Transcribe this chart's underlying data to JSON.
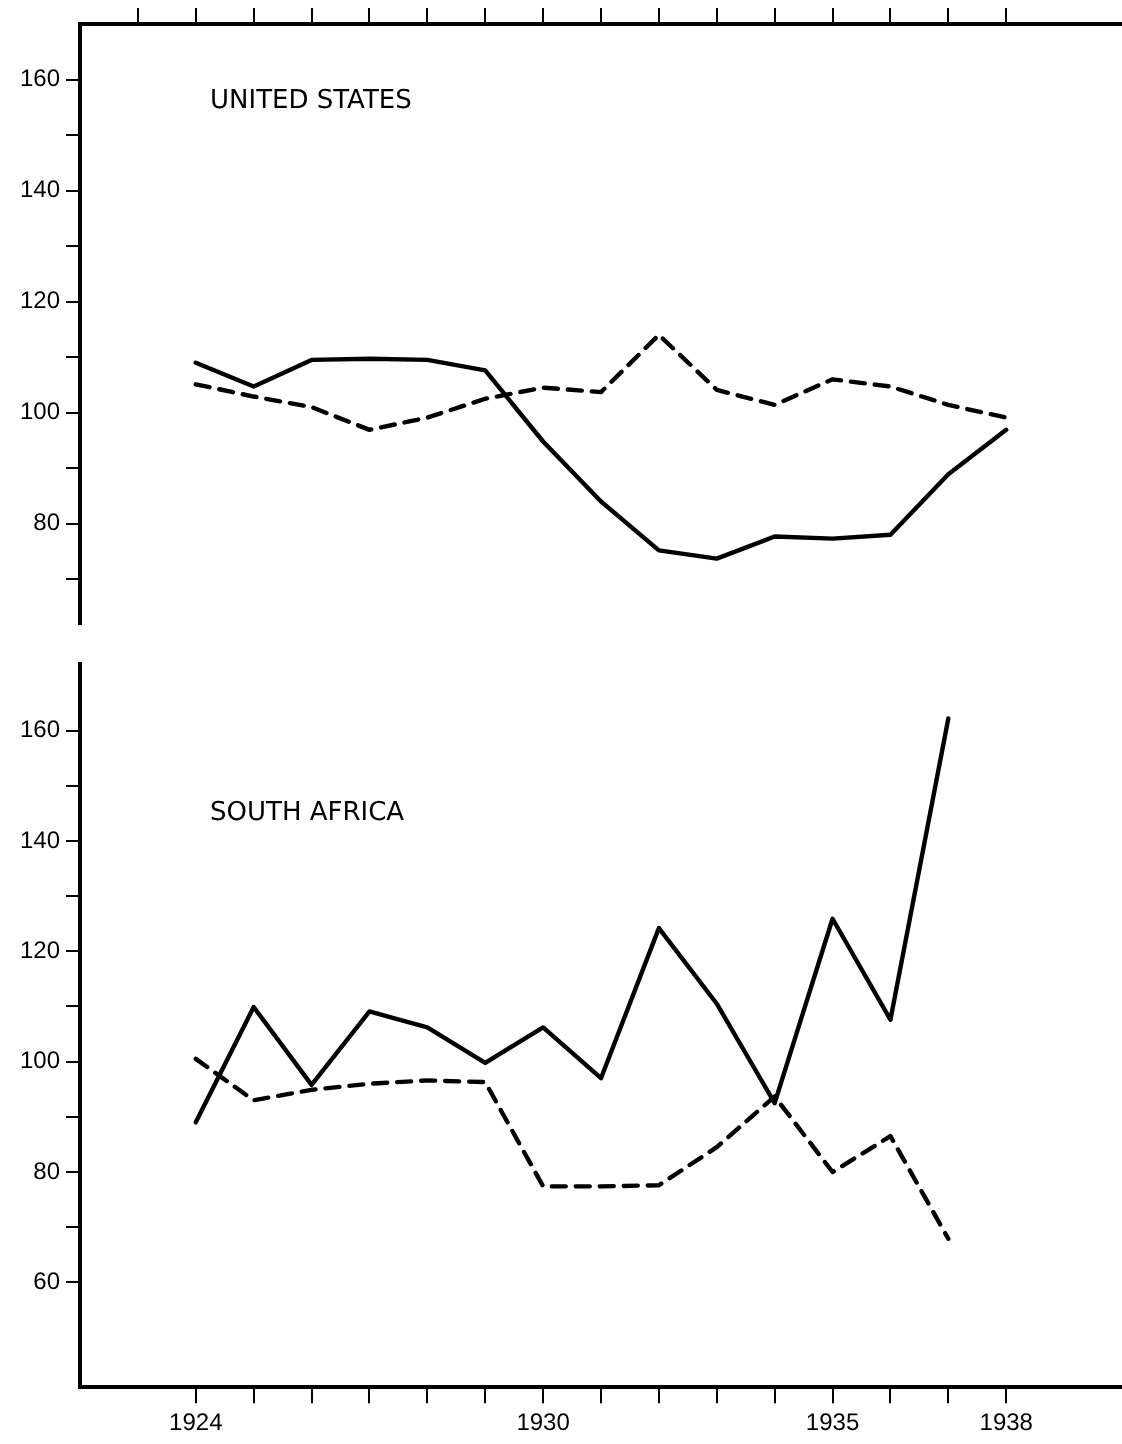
{
  "chart_data": [
    {
      "type": "line",
      "title": "UNITED STATES",
      "x": [
        1924,
        1925,
        1926,
        1927,
        1928,
        1929,
        1930,
        1931,
        1932,
        1933,
        1934,
        1935,
        1936,
        1937,
        1938
      ],
      "series": [
        {
          "color": "#000000",
          "line_style": "solid",
          "values": [
            109,
            104.7,
            109.5,
            109.7,
            109.5,
            107.6,
            94.8,
            84,
            75.2,
            73.7,
            77.7,
            77.3,
            78,
            88.9,
            96.9
          ]
        },
        {
          "color": "#000000",
          "line_style": "dashed",
          "values": [
            105.1,
            102.9,
            101,
            96.9,
            99.1,
            102.5,
            104.5,
            103.7,
            114,
            104.1,
            101.4,
            106,
            104.7,
            101.4,
            99.1
          ]
        }
      ],
      "xlim": [
        1922,
        1940
      ],
      "ylim": [
        62,
        170
      ],
      "xticks": [
        {
          "value": 1923,
          "label": null
        },
        {
          "value": 1924,
          "label": null
        },
        {
          "value": 1925,
          "label": null
        },
        {
          "value": 1926,
          "label": null
        },
        {
          "value": 1927,
          "label": null
        },
        {
          "value": 1928,
          "label": null
        },
        {
          "value": 1929,
          "label": null
        },
        {
          "value": 1930,
          "label": null
        },
        {
          "value": 1931,
          "label": null
        },
        {
          "value": 1932,
          "label": null
        },
        {
          "value": 1933,
          "label": null
        },
        {
          "value": 1934,
          "label": null
        },
        {
          "value": 1935,
          "label": null
        },
        {
          "value": 1936,
          "label": null
        },
        {
          "value": 1937,
          "label": null
        },
        {
          "value": 1938,
          "label": null
        }
      ],
      "yticks": [
        {
          "value": 70,
          "label": null
        },
        80,
        {
          "value": 90,
          "label": null
        },
        100,
        {
          "value": 110,
          "label": null
        },
        120,
        {
          "value": 130,
          "label": null
        },
        140,
        {
          "value": 150,
          "label": null
        },
        160
      ],
      "tick_labels": "y",
      "marker": "none"
    },
    {
      "type": "line",
      "title": "SOUTH AFRICA",
      "x": [
        1924,
        1925,
        1926,
        1927,
        1928,
        1929,
        1930,
        1931,
        1932,
        1933,
        1934,
        1935,
        1936,
        1937
      ],
      "series": [
        {
          "color": "#000000",
          "line_style": "solid",
          "values": [
            89,
            109.9,
            95.8,
            109.1,
            106.2,
            99.8,
            106.2,
            97,
            124.2,
            110.5,
            92.5,
            125.9,
            107.6,
            162.2
          ]
        },
        {
          "color": "#000000",
          "line_style": "dashed",
          "values": [
            100.5,
            93,
            94.9,
            96,
            96.6,
            96.3,
            77.4,
            77.4,
            77.6,
            84.5,
            93.7,
            80,
            86.5,
            67.9
          ]
        }
      ],
      "xlim": [
        1922,
        1940
      ],
      "ylim": [
        41,
        172
      ],
      "xticks": [
        1924,
        {
          "value": 1925,
          "label": null
        },
        {
          "value": 1926,
          "label": null
        },
        {
          "value": 1927,
          "label": null
        },
        {
          "value": 1928,
          "label": null
        },
        {
          "value": 1929,
          "label": null
        },
        1930,
        {
          "value": 1931,
          "label": null
        },
        {
          "value": 1932,
          "label": null
        },
        {
          "value": 1933,
          "label": null
        },
        {
          "value": 1934,
          "label": null
        },
        1935,
        {
          "value": 1936,
          "label": null
        },
        {
          "value": 1937,
          "label": null
        },
        1938
      ],
      "yticks": [
        60,
        {
          "value": 70,
          "label": null
        },
        80,
        {
          "value": 90,
          "label": null
        },
        100,
        {
          "value": 110,
          "label": null
        },
        120,
        {
          "value": 130,
          "label": null
        },
        140,
        {
          "value": 150,
          "label": null
        },
        160
      ],
      "marker": "none"
    }
  ]
}
